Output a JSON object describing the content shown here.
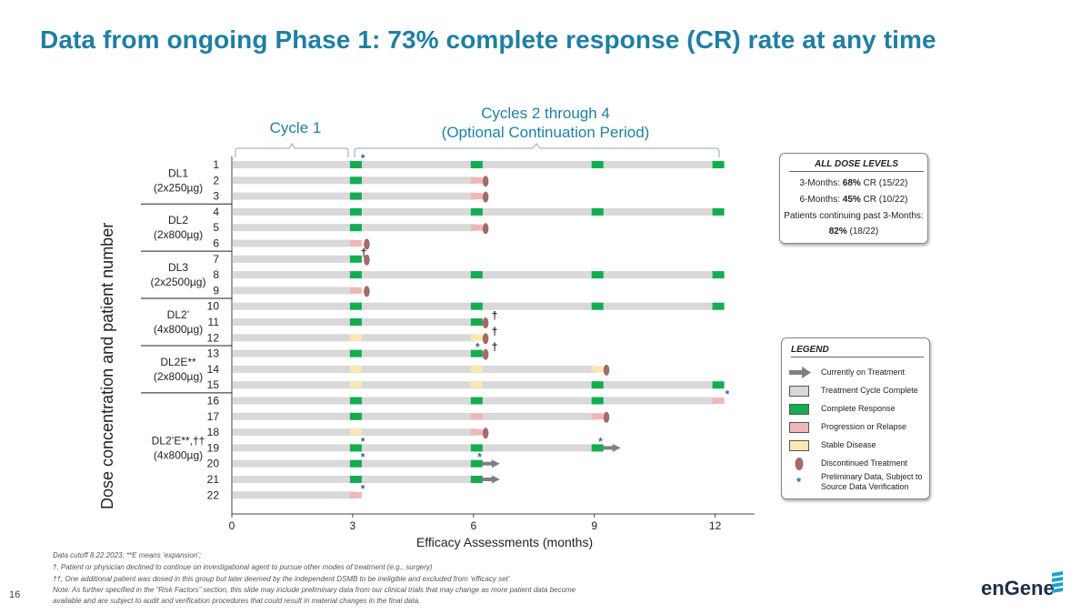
{
  "title": "Data from ongoing Phase 1: 73% complete response (CR) rate at any time",
  "brackets": {
    "cycle1": "Cycle 1",
    "cycles2to4_line1": "Cycles 2 through 4",
    "cycles2to4_line2": "(Optional Continuation Period)"
  },
  "chart_data": {
    "type": "swimmer",
    "xlabel": "Efficacy Assessments (months)",
    "ylabel": "Dose concentration and patient number",
    "xticks": [
      0,
      3,
      6,
      9,
      12
    ],
    "xlim": [
      0,
      13
    ],
    "groups": [
      {
        "label": [
          "DL1",
          "(2x250µg)"
        ],
        "patients": [
          1,
          3
        ]
      },
      {
        "label": [
          "DL2",
          "(2x800µg)"
        ],
        "patients": [
          4,
          6
        ]
      },
      {
        "label": [
          "DL3",
          "(2x2500µg)"
        ],
        "patients": [
          7,
          9
        ]
      },
      {
        "label": [
          "DL2’",
          "(4x800µg)"
        ],
        "patients": [
          10,
          12
        ]
      },
      {
        "label": [
          "DL2E**",
          "(2x800µg)"
        ],
        "patients": [
          13,
          15
        ]
      },
      {
        "label": [
          "DL2’E**,††",
          "(4x800µg)"
        ],
        "patients": [
          16,
          22
        ]
      }
    ],
    "patients": [
      {
        "id": "1",
        "end": 12,
        "assessments": [
          "CR",
          "CR",
          "CR",
          "CR"
        ],
        "discontinued": null,
        "arrow": false,
        "marks": [
          {
            "t": 3.2,
            "s": "*"
          }
        ]
      },
      {
        "id": "2",
        "end": 6,
        "assessments": [
          "CR",
          "PR"
        ],
        "discontinued": 6.3,
        "arrow": false,
        "marks": []
      },
      {
        "id": "3",
        "end": 6,
        "assessments": [
          "CR",
          "PR"
        ],
        "discontinued": 6.3,
        "arrow": false,
        "marks": []
      },
      {
        "id": "4",
        "end": 12,
        "assessments": [
          "CR",
          "CR",
          "CR",
          "CR"
        ],
        "discontinued": null,
        "arrow": false,
        "marks": []
      },
      {
        "id": "5",
        "end": 6,
        "assessments": [
          "CR",
          "PR"
        ],
        "discontinued": 6.3,
        "arrow": false,
        "marks": []
      },
      {
        "id": "6",
        "end": 3,
        "assessments": [
          "PR"
        ],
        "discontinued": 3.35,
        "arrow": false,
        "marks": []
      },
      {
        "id": "7",
        "end": 3,
        "assessments": [
          "CR"
        ],
        "discontinued": 3.35,
        "arrow": false,
        "marks": [
          {
            "t": 3.2,
            "s": "†"
          }
        ]
      },
      {
        "id": "8",
        "end": 12,
        "assessments": [
          "CR",
          "CR",
          "CR",
          "CR"
        ],
        "discontinued": null,
        "arrow": false,
        "marks": []
      },
      {
        "id": "9",
        "end": 3,
        "assessments": [
          "PR"
        ],
        "discontinued": 3.35,
        "arrow": false,
        "marks": []
      },
      {
        "id": "10",
        "end": 12,
        "assessments": [
          "CR",
          "CR",
          "CR",
          "CR"
        ],
        "discontinued": null,
        "arrow": false,
        "marks": []
      },
      {
        "id": "11",
        "end": 6,
        "assessments": [
          "CR",
          "CR"
        ],
        "discontinued": 6.3,
        "arrow": false,
        "marks": [
          {
            "t": 6.45,
            "s": "†"
          }
        ]
      },
      {
        "id": "12",
        "end": 6,
        "assessments": [
          "SD",
          "SD"
        ],
        "discontinued": 6.3,
        "arrow": false,
        "marks": [
          {
            "t": 6.45,
            "s": "†"
          }
        ]
      },
      {
        "id": "13",
        "end": 6,
        "assessments": [
          "CR",
          "CR"
        ],
        "discontinued": 6.3,
        "arrow": false,
        "marks": [
          {
            "t": 6.05,
            "s": "*"
          },
          {
            "t": 6.45,
            "s": "†"
          }
        ]
      },
      {
        "id": "14",
        "end": 9,
        "assessments": [
          "SD",
          "SD",
          "SD"
        ],
        "discontinued": 9.3,
        "arrow": false,
        "marks": []
      },
      {
        "id": "15",
        "end": 12,
        "assessments": [
          "SD",
          "SD",
          "CR",
          "CR"
        ],
        "discontinued": null,
        "arrow": false,
        "marks": []
      },
      {
        "id": "16",
        "end": 12,
        "assessments": [
          "CR",
          "CR",
          "CR",
          "PR"
        ],
        "discontinued": null,
        "arrow": false,
        "marks": [
          {
            "t": 12.25,
            "s": "*"
          }
        ]
      },
      {
        "id": "17",
        "end": 9,
        "assessments": [
          "CR",
          "PR",
          "PR"
        ],
        "discontinued": 9.3,
        "arrow": false,
        "marks": []
      },
      {
        "id": "18",
        "end": 6,
        "assessments": [
          "SD",
          "PR"
        ],
        "discontinued": 6.3,
        "arrow": false,
        "marks": []
      },
      {
        "id": "19",
        "end": 9,
        "assessments": [
          "CR",
          "CR",
          "CR"
        ],
        "discontinued": null,
        "arrow": true,
        "marks": [
          {
            "t": 3.2,
            "s": "*"
          },
          {
            "t": 9.1,
            "s": "*"
          }
        ]
      },
      {
        "id": "20",
        "end": 6,
        "assessments": [
          "CR",
          "CR"
        ],
        "discontinued": null,
        "arrow": true,
        "marks": [
          {
            "t": 3.2,
            "s": "*"
          },
          {
            "t": 6.1,
            "s": "*"
          }
        ]
      },
      {
        "id": "21",
        "end": 6,
        "assessments": [
          "CR",
          "CR"
        ],
        "discontinued": null,
        "arrow": true,
        "marks": []
      },
      {
        "id": "22",
        "end": 3,
        "assessments": [
          "PR"
        ],
        "discontinued": null,
        "arrow": false,
        "marks": [
          {
            "t": 3.2,
            "s": "*"
          }
        ]
      }
    ],
    "colors": {
      "treatment": "#d9d9d9",
      "CR": "#13ad4f",
      "PR": "#efb7b9",
      "SD": "#fbe7b0",
      "discontinued": "#a56a6a",
      "arrow": "#808080",
      "star": "#3a5f8a"
    }
  },
  "summary_box": {
    "heading": "ALL DOSE LEVELS",
    "row1_label": "3-Months: ",
    "row1_bold": "68%",
    "row1_rest": " CR (15/22)",
    "row2_label": "6-Months: ",
    "row2_bold": "45%",
    "row2_rest": " CR (10/22)",
    "row3": "Patients continuing past 3-Months:",
    "row4_bold": "82%",
    "row4_rest": " (18/22)"
  },
  "legend": {
    "heading": "LEGEND",
    "items": {
      "on_treatment": "Currently on Treatment",
      "cycle_complete": "Treatment Cycle Complete",
      "complete_response": "Complete Response",
      "progression": "Progression or Relapse",
      "stable": "Stable Disease",
      "discontinued": "Discontinued Treatment",
      "preliminary_1": "Preliminary Data, Subject to",
      "preliminary_2": "Source Data Verification"
    }
  },
  "footnotes": {
    "line1": "Data cutoff 8.22.2023; **E means ‘expansion’;",
    "line2": "†, Patient or physician declined to continue on investigational agent to pursue other modes of treatment (e.g., surgery)",
    "line3": "††, One additional patient was dosed in this group but later deemed by the independent DSMB to be ineligible and excluded from ‘efficacy set’",
    "line4": "Note: As further specified in the “Risk Factors” section, this slide may include preliminary data from our clinical trials that may change as more patient data become",
    "line5": "available and are subject to audit and verification procedures that could result in material changes in the final data."
  },
  "page_number": "16",
  "logo_text": "enGene"
}
